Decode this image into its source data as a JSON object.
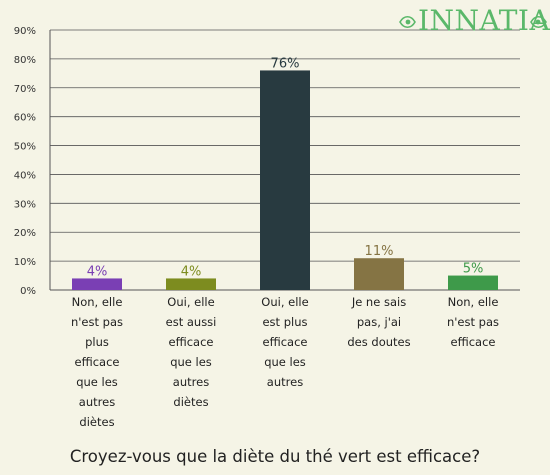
{
  "brand": {
    "name": "INNATIA",
    "color": "#5bb86a",
    "logo_icon": "leaf-swirl-icon"
  },
  "chart_data": {
    "type": "bar",
    "title": "Croyez-vous que la diète du thé vert est efficace?",
    "xlabel": "",
    "ylabel": "",
    "ylim": [
      0,
      90
    ],
    "yticks": [
      "0%",
      "10%",
      "20%",
      "30%",
      "40%",
      "50%",
      "60%",
      "70%",
      "80%",
      "90%"
    ],
    "grid": true,
    "categories": [
      "Non, elle\nn'est pas\nplus\nefficace\nque les\nautres\ndiètes",
      "Oui, elle\nest aussi\nefficace\nque les\nautres\ndiètes",
      "Oui, elle\nest plus\nefficace\nque les\nautres",
      "Je ne sais\npas, j'ai\ndes doutes",
      "Non, elle\nn'est pas\nefficace"
    ],
    "values": [
      4,
      4,
      76,
      11,
      5
    ],
    "value_labels": [
      "4%",
      "4%",
      "76%",
      "11%",
      "5%"
    ],
    "colors": [
      "#7a3fb4",
      "#7d8c1f",
      "#283a40",
      "#857444",
      "#3e9a4a"
    ]
  }
}
